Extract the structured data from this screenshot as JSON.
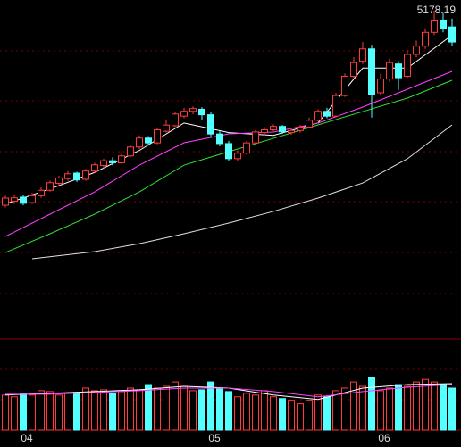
{
  "chart_data": {
    "type": "candlestick",
    "categories": [
      null,
      "04",
      null,
      null,
      null,
      null,
      null,
      null,
      null,
      null,
      null,
      null,
      null,
      null,
      null,
      null,
      null,
      null,
      null,
      null,
      null,
      null,
      "05",
      null,
      null,
      null,
      null,
      null,
      null,
      null,
      null,
      null,
      null,
      null,
      null,
      null,
      null,
      null,
      null,
      null,
      null,
      "06",
      null,
      null,
      null,
      null,
      null,
      null,
      null,
      null,
      null
    ],
    "open": [
      3761,
      3790,
      3820,
      3780,
      3830,
      3870,
      3920,
      3955,
      3995,
      3950,
      4010,
      4050,
      4085,
      4070,
      4120,
      4185,
      4250,
      4215,
      4300,
      4340,
      4410,
      4445,
      4460,
      4420,
      4280,
      4210,
      4100,
      4140,
      4215,
      4290,
      4310,
      4335,
      4290,
      4305,
      4330,
      4380,
      4445,
      4410,
      4560,
      4700,
      4810,
      4900,
      4580,
      4680,
      4790,
      4700,
      4860,
      4920,
      5020,
      5110,
      5060
    ],
    "close": [
      3813,
      3815,
      3775,
      3830,
      3870,
      3925,
      3960,
      3990,
      3945,
      4010,
      4055,
      4085,
      4070,
      4120,
      4185,
      4250,
      4215,
      4310,
      4345,
      4425,
      4445,
      4465,
      4420,
      4280,
      4210,
      4100,
      4140,
      4215,
      4295,
      4310,
      4335,
      4295,
      4305,
      4330,
      4380,
      4445,
      4410,
      4560,
      4700,
      4800,
      4900,
      4570,
      4680,
      4800,
      4690,
      4860,
      4920,
      5020,
      5110,
      5050,
      4950
    ],
    "high": [
      3830,
      3840,
      3835,
      3850,
      3890,
      3940,
      3975,
      4010,
      4005,
      4025,
      4070,
      4100,
      4110,
      4135,
      4200,
      4270,
      4265,
      4320,
      4380,
      4440,
      4470,
      4480,
      4475,
      4440,
      4300,
      4230,
      4160,
      4230,
      4310,
      4330,
      4350,
      4345,
      4320,
      4345,
      4400,
      4460,
      4470,
      4580,
      4720,
      4840,
      4950,
      4930,
      4720,
      4830,
      4810,
      4890,
      4960,
      5050,
      5178.19,
      5160,
      5120
    ],
    "low": [
      3745,
      3770,
      3760,
      3770,
      3815,
      3860,
      3905,
      3940,
      3930,
      3940,
      3995,
      4030,
      4050,
      4060,
      4110,
      4170,
      4195,
      4205,
      4290,
      4330,
      4395,
      4425,
      4380,
      4260,
      4190,
      4080,
      4080,
      4130,
      4200,
      4270,
      4300,
      4280,
      4275,
      4290,
      4320,
      4370,
      4395,
      4400,
      4550,
      4690,
      4790,
      4400,
      4560,
      4660,
      4600,
      4690,
      4840,
      4900,
      5000,
      5020,
      4920
    ],
    "up_color": "#ff3c3c",
    "down_color": "#54ffff",
    "ylim": [
      2786,
      5256
    ],
    "lines": [
      {
        "color": "#ffffff",
        "x": [
          0,
          5,
          10,
          15,
          20,
          25,
          30,
          35,
          40,
          45,
          50
        ],
        "values": [
          3770,
          3880,
          4000,
          4160,
          4360,
          4290,
          4270,
          4360,
          4760,
          4760,
          5000
        ]
      },
      {
        "color": "#ff40ff",
        "x": [
          0,
          5,
          10,
          15,
          20,
          25,
          30,
          35,
          40,
          45,
          50
        ],
        "values": [
          3533,
          3696,
          3858,
          4053,
          4216,
          4281,
          4294,
          4359,
          4476,
          4606,
          4736
        ]
      },
      {
        "color": "#30e030",
        "x": [
          0,
          5,
          10,
          15,
          20,
          25,
          30,
          35,
          40,
          45,
          50
        ],
        "values": [
          3416,
          3553,
          3696,
          3858,
          4053,
          4151,
          4248,
          4346,
          4443,
          4541,
          4671
        ]
      },
      {
        "color": "#e0e0e0",
        "x": [
          3,
          10,
          15,
          20,
          25,
          30,
          35,
          40,
          45,
          50
        ],
        "values": [
          3371,
          3423,
          3481,
          3553,
          3631,
          3716,
          3813,
          3923,
          4099,
          4346
        ]
      }
    ],
    "volume": [
      40,
      38,
      42,
      40,
      45,
      44,
      40,
      42,
      43,
      48,
      45,
      46,
      42,
      44,
      48,
      46,
      52,
      48,
      50,
      55,
      50,
      45,
      46,
      55,
      48,
      44,
      38,
      42,
      40,
      45,
      38,
      36,
      34,
      30,
      34,
      40,
      38,
      45,
      48,
      55,
      50,
      60,
      45,
      48,
      52,
      50,
      55,
      58,
      55,
      52,
      48
    ],
    "volume_ylim": [
      0,
      100
    ],
    "volume_lines": [
      {
        "color": "#ffffff",
        "x": [
          0,
          5,
          10,
          15,
          20,
          25,
          30,
          35,
          40,
          45,
          50
        ],
        "values": [
          40,
          42,
          44,
          46,
          50,
          48,
          40,
          35,
          48,
          52,
          53
        ]
      },
      {
        "color": "#ff40ff",
        "x": [
          0,
          5,
          10,
          15,
          20,
          25,
          30,
          35,
          40,
          45,
          50
        ],
        "values": [
          41,
          41,
          43,
          45,
          48,
          48,
          44,
          38,
          44,
          49,
          52
        ]
      }
    ]
  }
}
